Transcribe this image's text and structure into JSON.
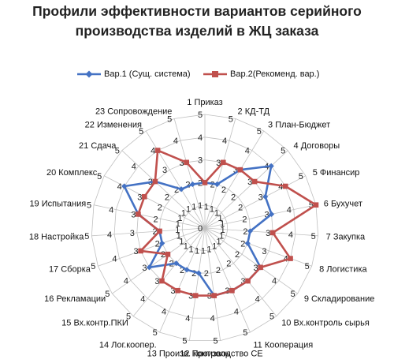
{
  "chart_data": {
    "type": "radar",
    "title_lines": [
      "Профили эффективности  вариантов серийного",
      "производства изделий  в ЖЦ заказа"
    ],
    "categories": [
      "1 Приказ",
      "2 КД-ТД",
      "3 План-Бюджет",
      "4 Договоры",
      "5 Финансир",
      "6 Бухучет",
      "7 Закупка",
      "8 Логистика",
      "9 Складирование",
      "10 Вх.контроль сырья",
      "11 Кооперация",
      "12 Производство СЕ",
      "13 Произв. контроль",
      "14 Лог.коопер.",
      "15 Вх.контр.ПКИ",
      "16 Рекламации",
      "17 Сборка",
      "18 Настройка",
      "19 Испытания",
      "20 Комплекс",
      "21 Сдача",
      "22 Изменения",
      "23 Сопровождение"
    ],
    "rlim": [
      0,
      5
    ],
    "ticks": [
      0,
      1,
      2,
      3,
      4,
      5
    ],
    "tick_labels": [
      "0",
      "1",
      "2",
      "3",
      "4",
      "5"
    ],
    "tick_label_categories": [
      0,
      1,
      2,
      3,
      4,
      5,
      6,
      7,
      8,
      9,
      10,
      11,
      12,
      13,
      14,
      15,
      16,
      17,
      18,
      19,
      20,
      21,
      22
    ],
    "series": [
      {
        "name": "Вар.1 (Сущ. система)",
        "color": "#4472C4",
        "marker": "diamond",
        "values": [
          2,
          2,
          3,
          4,
          3,
          3,
          2,
          2,
          3,
          3,
          3,
          3,
          2,
          2,
          2,
          3,
          2,
          2,
          3,
          4,
          3,
          2,
          2
        ]
      },
      {
        "name": "Вар.2(Рекоменд. вар.)",
        "color": "#C0504D",
        "marker": "square",
        "values": [
          2,
          3,
          3,
          3,
          4,
          5,
          3,
          4,
          3,
          3,
          3,
          3,
          3,
          3,
          3,
          2,
          3,
          2,
          3,
          3,
          3,
          4,
          3
        ]
      }
    ],
    "grid": true,
    "legend_position": "top"
  }
}
